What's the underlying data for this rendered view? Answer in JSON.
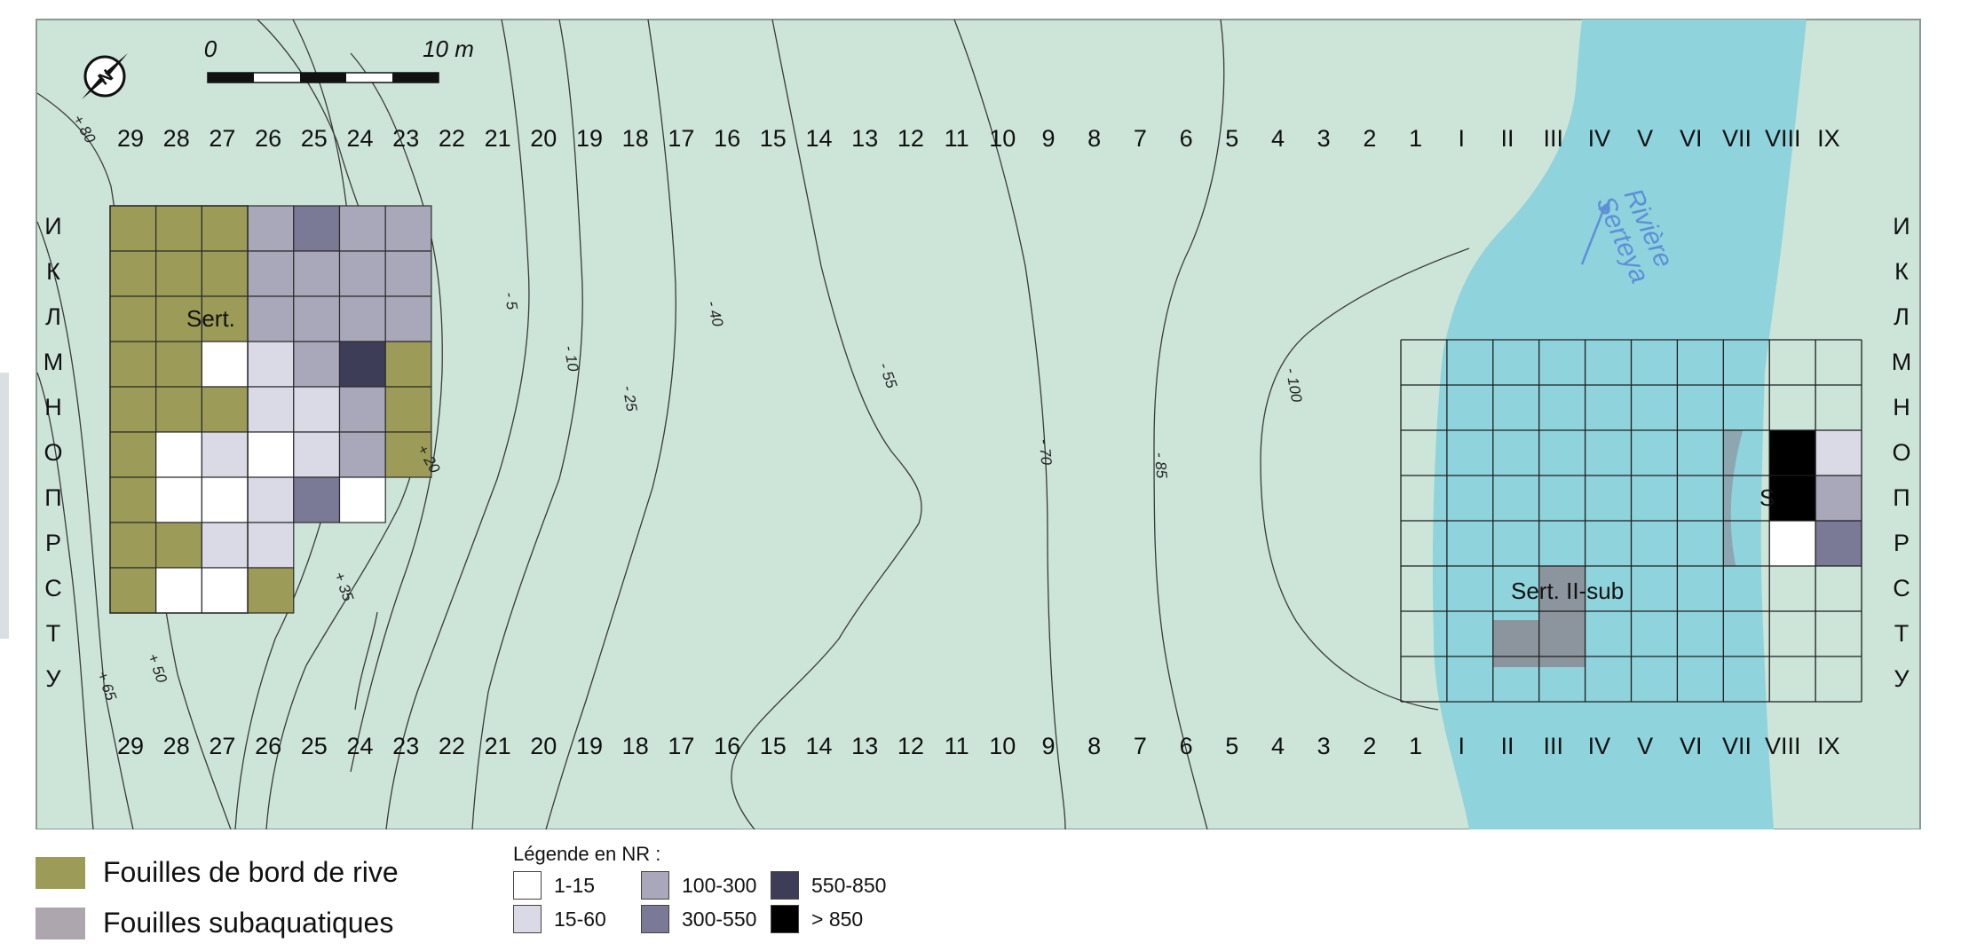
{
  "map": {
    "scale_bar": {
      "start_label": "0",
      "end_label": "10 m"
    },
    "north_label": "N",
    "columns": [
      "29",
      "28",
      "27",
      "26",
      "25",
      "24",
      "23",
      "22",
      "21",
      "20",
      "19",
      "18",
      "17",
      "16",
      "15",
      "14",
      "13",
      "12",
      "11",
      "10",
      "9",
      "8",
      "7",
      "6",
      "5",
      "4",
      "3",
      "2",
      "1",
      "I",
      "II",
      "III",
      "IV",
      "V",
      "VI",
      "VII",
      "VIII",
      "IX"
    ],
    "rows": [
      "И",
      "К",
      "Л",
      "М",
      "Н",
      "О",
      "П",
      "Р",
      "С",
      "Т",
      "У"
    ],
    "contours": [
      "+ 80",
      "+ 65",
      "+ 50",
      "+ 35",
      "+ 20",
      "- 5",
      "- 10",
      "- 25",
      "- 40",
      "- 55",
      "- 70",
      "- 85",
      "- 100"
    ],
    "site_labels": {
      "left": "Sert.",
      "right_sub": "Sert. II-sub",
      "right_bank": "S"
    },
    "river_label": [
      "Rivière",
      "Serteya"
    ],
    "colors": {
      "land": "#cde5d8",
      "river": "#8fd3dc",
      "bank_excavation": "#9c9c58",
      "subaquatic_excavation": "#8c8a92",
      "class_1_15": "#ffffff",
      "class_15_60": "#dadae6",
      "class_100_300": "#a8a8ba",
      "class_300_550": "#7a7a96",
      "class_550_850": "#3d3d58",
      "class_gt_850": "#000000"
    }
  },
  "legend": {
    "bank_label": "Fouilles de bord de rive",
    "sub_label": "Fouilles subaquatiques",
    "nr_title": "Légende en NR :",
    "classes": [
      "1-15",
      "15-60",
      "100-300",
      "300-550",
      "550-850",
      "> 850"
    ]
  }
}
